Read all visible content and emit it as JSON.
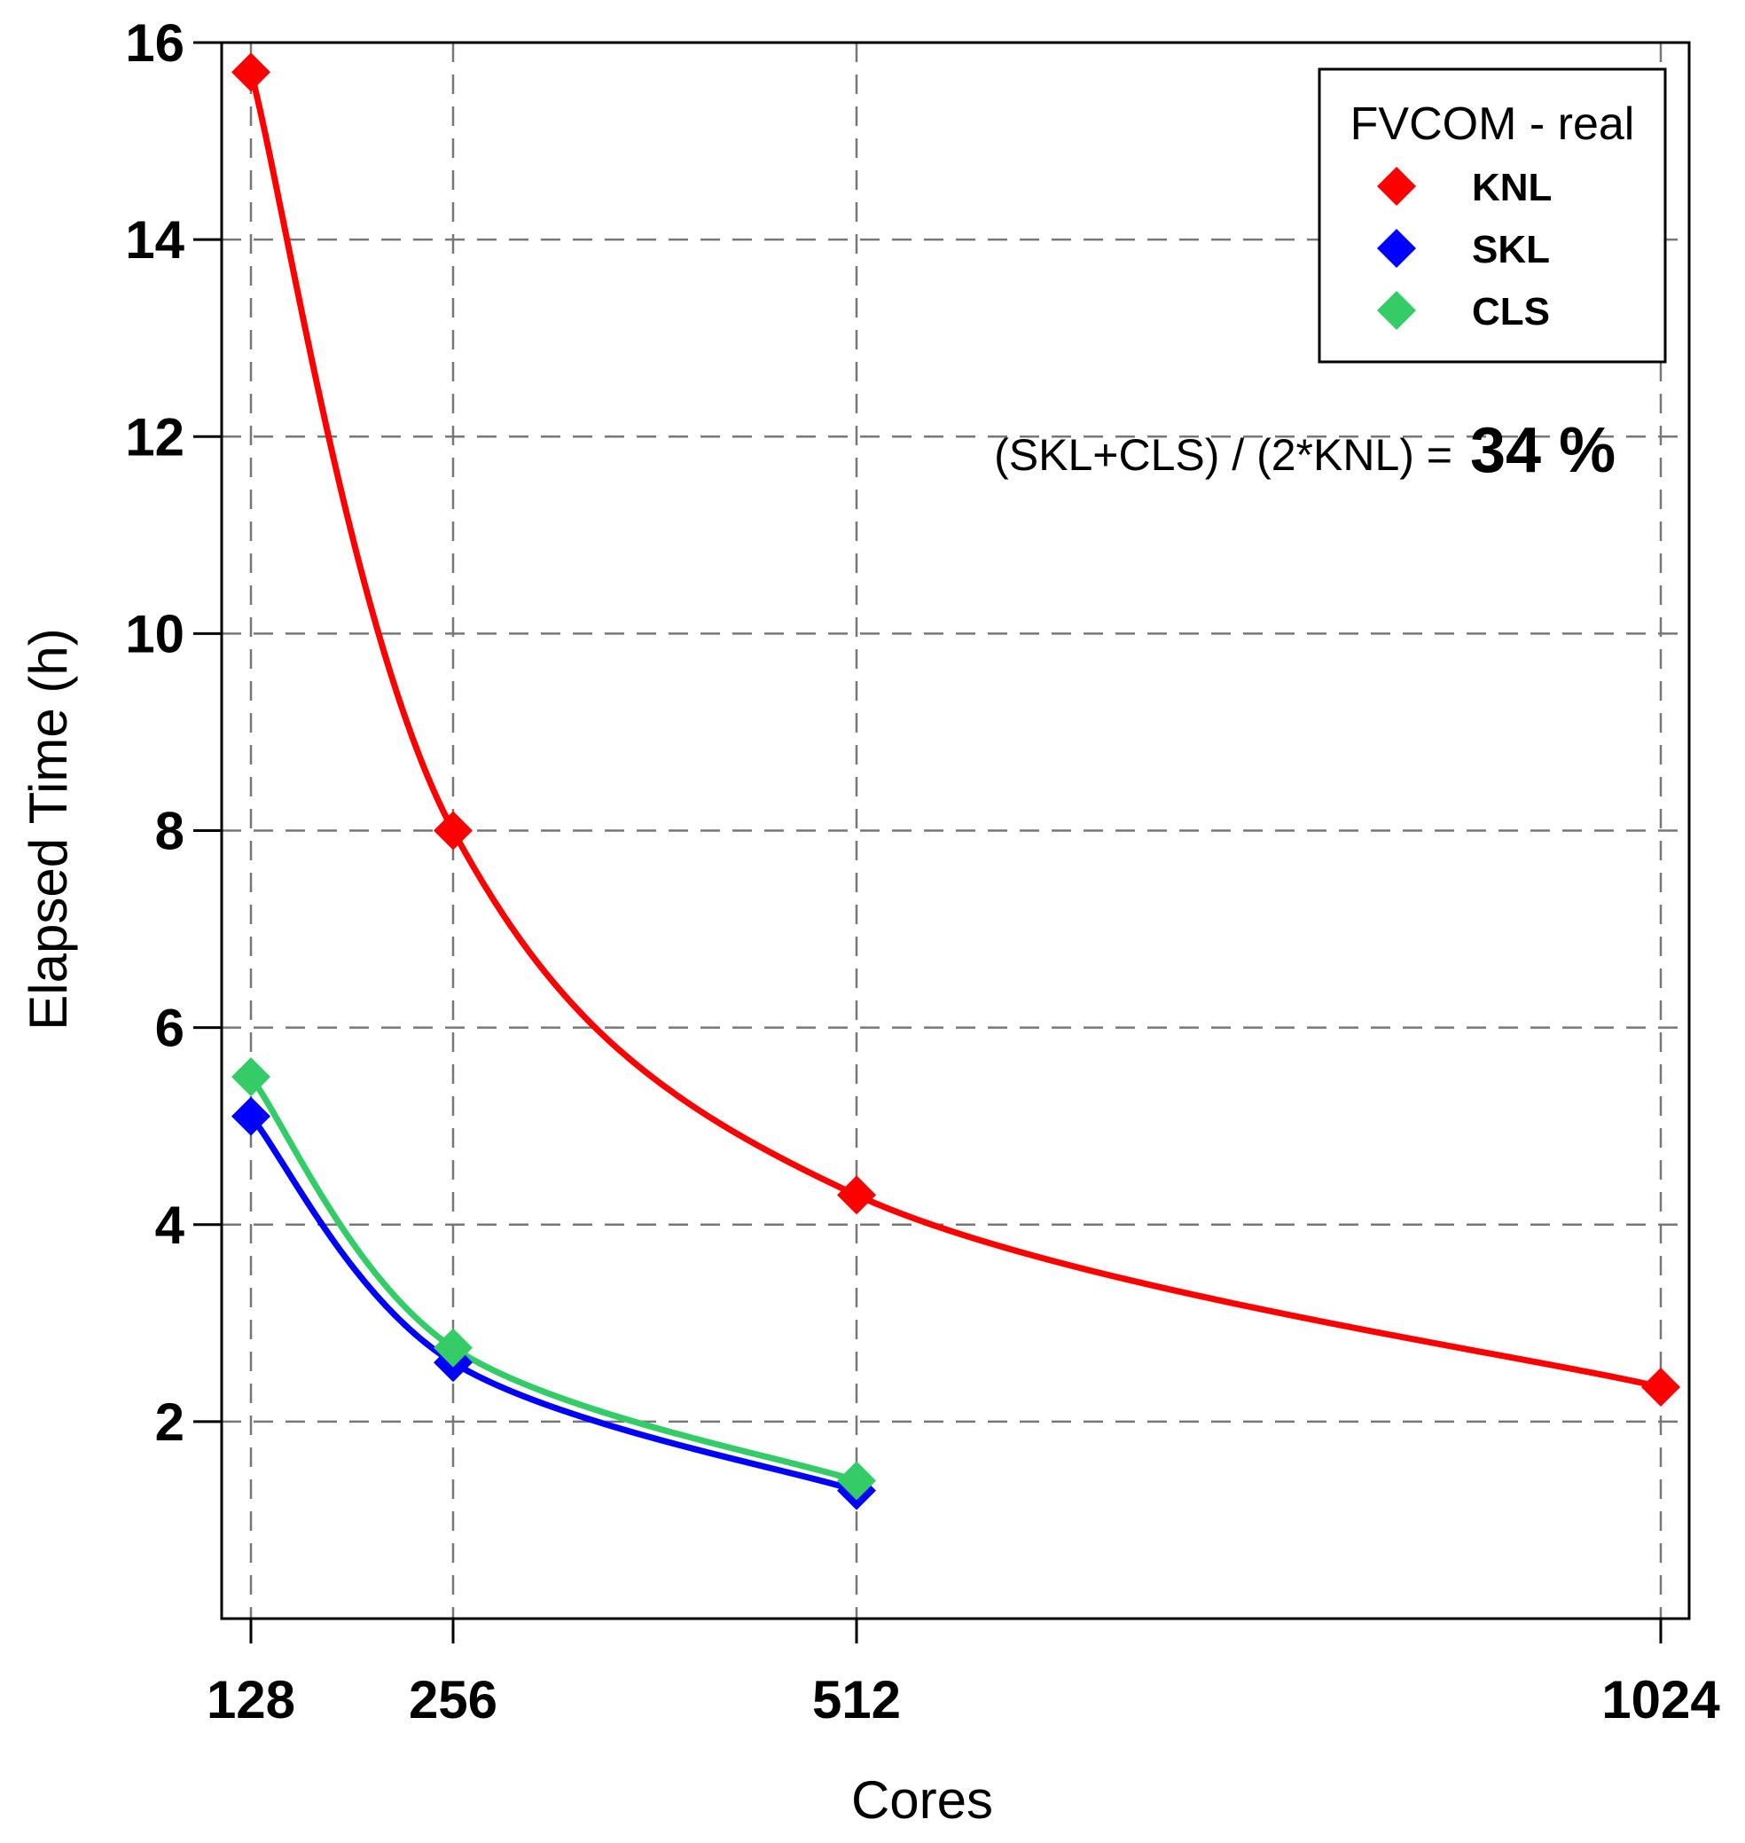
{
  "chart_data": {
    "type": "line",
    "title": "",
    "xlabel": "Cores",
    "ylabel": "Elapsed Time (h)",
    "x_categories": [
      "128",
      "256",
      "512",
      "1024"
    ],
    "x_values": [
      128,
      256,
      512,
      1024
    ],
    "x_scale": "log2",
    "ylim": [
      0,
      16
    ],
    "y_ticks": [
      2,
      4,
      6,
      8,
      10,
      12,
      14,
      16
    ],
    "grid": true,
    "legend": {
      "title": "FVCOM - real",
      "placement": "top-right"
    },
    "series": [
      {
        "name": "KNL",
        "color": "#ff0000",
        "x": [
          128,
          256,
          512,
          1024
        ],
        "values": [
          15.7,
          8.0,
          4.3,
          2.35
        ]
      },
      {
        "name": "SKL",
        "color": "#0000ff",
        "x": [
          128,
          256,
          512
        ],
        "values": [
          5.1,
          2.6,
          1.3
        ]
      },
      {
        "name": "CLS",
        "color": "#33cc66",
        "x": [
          128,
          256,
          512
        ],
        "values": [
          5.5,
          2.75,
          1.4
        ]
      }
    ],
    "annotation": {
      "text": "(SKL+CLS) / (2*KNL) =",
      "value": "34 %"
    }
  }
}
